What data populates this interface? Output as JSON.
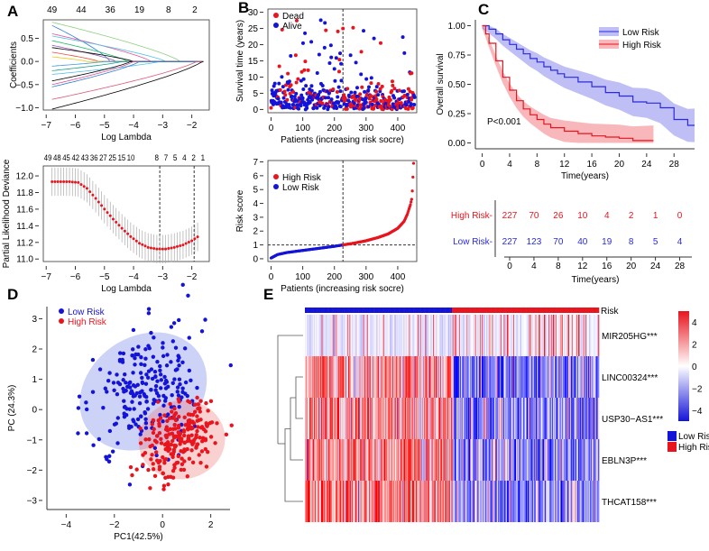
{
  "panels": {
    "A": "A",
    "B": "B",
    "C": "C",
    "D": "D",
    "E": "E"
  },
  "chart_data": [
    {
      "id": "A1",
      "type": "line",
      "xlabel": "Log Lambda",
      "ylabel": "Coefficients",
      "xlim": [
        -7.1,
        -1.4
      ],
      "ylim": [
        -1.05,
        0.9
      ],
      "xticks": [
        -7,
        -6,
        -5,
        -4,
        -3,
        -2
      ],
      "yticks": [
        -1.0,
        -0.5,
        0.0,
        0.5
      ],
      "top_ticks": {
        "at": [
          -6.8,
          -5.8,
          -4.8,
          -3.8,
          -2.8,
          -1.9
        ],
        "labels": [
          "49",
          "44",
          "36",
          "19",
          "8",
          "2"
        ]
      },
      "series": [
        {
          "start": 0.85,
          "zero_at": -2.4,
          "color": "#8bd17c"
        },
        {
          "start": 0.78,
          "zero_at": -4.8,
          "color": "#2f7fd6"
        },
        {
          "start": 0.6,
          "zero_at": -3.4,
          "color": "#e0559a"
        },
        {
          "start": 0.55,
          "zero_at": -2.9,
          "color": "#4fc3e8"
        },
        {
          "start": 0.45,
          "zero_at": -4.2,
          "color": "#1fbf6a"
        },
        {
          "start": 0.35,
          "zero_at": -4.6,
          "color": "#9b59b6"
        },
        {
          "start": 0.3,
          "zero_at": -4.0,
          "color": "#000000"
        },
        {
          "start": 0.2,
          "zero_at": -5.2,
          "color": "#e74c3c"
        },
        {
          "start": 0.1,
          "zero_at": -5.6,
          "color": "#f1c40f"
        },
        {
          "start": -0.1,
          "zero_at": -5.0,
          "color": "#3498db"
        },
        {
          "start": -0.2,
          "zero_at": -4.4,
          "color": "#16a085"
        },
        {
          "start": -0.28,
          "zero_at": -3.1,
          "color": "#4fc3e8"
        },
        {
          "start": -0.42,
          "zero_at": -4.1,
          "color": "#000000"
        },
        {
          "start": -0.5,
          "zero_at": -4.0,
          "color": "#e0559a"
        },
        {
          "start": -0.55,
          "zero_at": -3.8,
          "color": "#2f7fd6"
        },
        {
          "start": -0.82,
          "zero_at": -1.85,
          "color": "#e05a7a"
        },
        {
          "start": -1.03,
          "zero_at": -1.65,
          "color": "#000000"
        }
      ]
    },
    {
      "id": "A2",
      "type": "line",
      "xlabel": "Log Lambda",
      "ylabel": "Partial Likelihood Deviance",
      "xlim": [
        -7.1,
        -1.4
      ],
      "ylim": [
        10.97,
        12.12
      ],
      "xticks": [
        -7,
        -6,
        -5,
        -4,
        -3,
        -2
      ],
      "yticks": [
        11.0,
        11.2,
        11.4,
        11.6,
        11.8,
        12.0
      ],
      "top_ticks": {
        "at": [
          -6.8,
          -6.6,
          -6.4,
          -6.2,
          -6.0,
          -5.8,
          -5.6,
          -5.4,
          -5.2,
          -5.0,
          -4.8,
          -4.6,
          -3.3,
          -3.0,
          -2.6,
          -2.3,
          -2.0,
          -1.7
        ],
        "labels": [
          "49",
          "48",
          "45",
          "42",
          "43",
          "36",
          "27",
          "25",
          "15",
          "10",
          "",
          "",
          "8",
          "7",
          "5",
          "4",
          "2",
          "1"
        ]
      },
      "vlines": [
        -3.1,
        -1.92
      ],
      "x": [
        -6.8,
        -6.5,
        -6.2,
        -5.9,
        -5.6,
        -5.3,
        -5.0,
        -4.7,
        -4.4,
        -4.1,
        -3.8,
        -3.5,
        -3.2,
        -2.9,
        -2.6,
        -2.3,
        -2.0,
        -1.7
      ],
      "y": [
        11.93,
        11.93,
        11.93,
        11.92,
        11.85,
        11.73,
        11.6,
        11.48,
        11.37,
        11.27,
        11.19,
        11.14,
        11.12,
        11.12,
        11.14,
        11.17,
        11.22,
        11.29
      ],
      "err": 0.17
    },
    {
      "id": "B1",
      "type": "scatter",
      "xlabel": "Patients (increasing risk socre)",
      "ylabel": "Survival time (years)",
      "xlim": [
        -10,
        460
      ],
      "ylim": [
        -1,
        31
      ],
      "xticks": [
        0,
        100,
        200,
        300,
        400
      ],
      "yticks": [
        0,
        5,
        10,
        15,
        20,
        25,
        30
      ],
      "vline": 227,
      "legend": [
        {
          "name": "Dead",
          "color": "#e8141e"
        },
        {
          "name": "Alive",
          "color": "#1414d8"
        }
      ]
    },
    {
      "id": "B2",
      "type": "line",
      "xlabel": "Patients (increasing risk socre)",
      "ylabel": "Risk score",
      "xlim": [
        -10,
        460
      ],
      "ylim": [
        -0.2,
        7.1
      ],
      "xticks": [
        0,
        100,
        200,
        300,
        400
      ],
      "yticks": [
        0,
        1,
        2,
        3,
        4,
        5,
        6,
        7
      ],
      "vline": 227,
      "hline": 1,
      "legend": [
        {
          "name": "High Risk",
          "color": "#e8141e"
        },
        {
          "name": "Low Risk",
          "color": "#1414d8"
        }
      ],
      "x": [
        0,
        20,
        50,
        100,
        150,
        200,
        227,
        260,
        300,
        340,
        370,
        400,
        420,
        430,
        440,
        445,
        450
      ],
      "y": [
        0.05,
        0.3,
        0.45,
        0.6,
        0.75,
        0.9,
        1.0,
        1.12,
        1.3,
        1.55,
        1.8,
        2.2,
        2.7,
        3.2,
        3.9,
        4.4,
        6.9
      ]
    },
    {
      "id": "C",
      "type": "line",
      "xlabel": "Time(years)",
      "ylabel": "Overall survival",
      "xlim": [
        -1,
        31
      ],
      "ylim": [
        -0.05,
        1.05
      ],
      "xticks": [
        0,
        4,
        8,
        12,
        16,
        20,
        24,
        28
      ],
      "yticks": [
        0.0,
        0.25,
        0.5,
        0.75,
        1.0
      ],
      "pvalue": "P<0.001",
      "series": [
        {
          "name": "Low Risk",
          "color": "#2a2ae0",
          "t": [
            0,
            1,
            2,
            3,
            4,
            5,
            6,
            7,
            8,
            9,
            10,
            11,
            12,
            14,
            16,
            18,
            20,
            22,
            24,
            26,
            28,
            30,
            31
          ],
          "s": [
            1,
            0.97,
            0.93,
            0.88,
            0.84,
            0.8,
            0.76,
            0.72,
            0.69,
            0.65,
            0.62,
            0.59,
            0.56,
            0.52,
            0.48,
            0.43,
            0.4,
            0.35,
            0.34,
            0.3,
            0.2,
            0.15,
            0.15
          ]
        },
        {
          "name": "High Risk",
          "color": "#e8141e",
          "t": [
            0,
            0.5,
            1,
            2,
            3,
            4,
            5,
            6,
            7,
            8,
            9,
            10,
            12,
            14,
            16,
            18,
            20,
            22,
            25
          ],
          "s": [
            1,
            0.93,
            0.85,
            0.7,
            0.56,
            0.45,
            0.36,
            0.29,
            0.24,
            0.2,
            0.16,
            0.13,
            0.1,
            0.08,
            0.06,
            0.05,
            0.04,
            0.02,
            0.02
          ]
        }
      ],
      "risk_table": {
        "times": [
          0,
          4,
          8,
          12,
          16,
          20,
          24,
          28
        ],
        "xlabel": "Time(years)",
        "rows": [
          {
            "name": "High Risk",
            "color": "#e8141e",
            "values": [
              227,
              70,
              26,
              10,
              4,
              2,
              1,
              0
            ]
          },
          {
            "name": "Low Risk",
            "color": "#2a2ae0",
            "values": [
              227,
              123,
              70,
              40,
              19,
              8,
              5,
              4
            ]
          }
        ]
      }
    },
    {
      "id": "D",
      "type": "scatter",
      "xlabel": "PC1(42.5%)",
      "ylabel": "PC (24.3%)",
      "xlim": [
        -4.8,
        2.8
      ],
      "ylim": [
        -3.3,
        3.4
      ],
      "xticks": [
        -4,
        -2,
        0,
        2
      ],
      "yticks": [
        -3,
        -2,
        -1,
        0,
        1,
        2,
        3
      ],
      "legend": [
        {
          "name": "Low Risk",
          "color": "#1414d8"
        },
        {
          "name": "High Risk",
          "color": "#e8141e"
        }
      ],
      "ellipses": [
        {
          "group": "Low Risk",
          "cx": -0.8,
          "cy": 0.6,
          "rx": 2.8,
          "ry": 1.8,
          "angle": -35,
          "color": "#6f7ee8"
        },
        {
          "group": "High Risk",
          "cx": 0.8,
          "cy": -1.0,
          "rx": 1.8,
          "ry": 1.3,
          "angle": -10,
          "color": "#f07a7a"
        }
      ]
    },
    {
      "id": "E",
      "type": "heatmap",
      "annotation_label": "Risk",
      "rows": [
        "MIR205HG***",
        "LINC00324***",
        "USP30−AS1***",
        "EBLN3P***",
        "THCAT158***"
      ],
      "row_high_in": [
        "High",
        "Low",
        "Low",
        "Low",
        "High"
      ],
      "split": 227,
      "n": 454,
      "colorbar": {
        "ticks": [
          4,
          2,
          0,
          -2,
          -4
        ],
        "low": "#1414d8",
        "mid": "#ffffff",
        "high": "#e8141e"
      },
      "legend": [
        {
          "name": "Low Risk",
          "color": "#1414d8"
        },
        {
          "name": "High Risk",
          "color": "#e8141e"
        }
      ]
    }
  ]
}
